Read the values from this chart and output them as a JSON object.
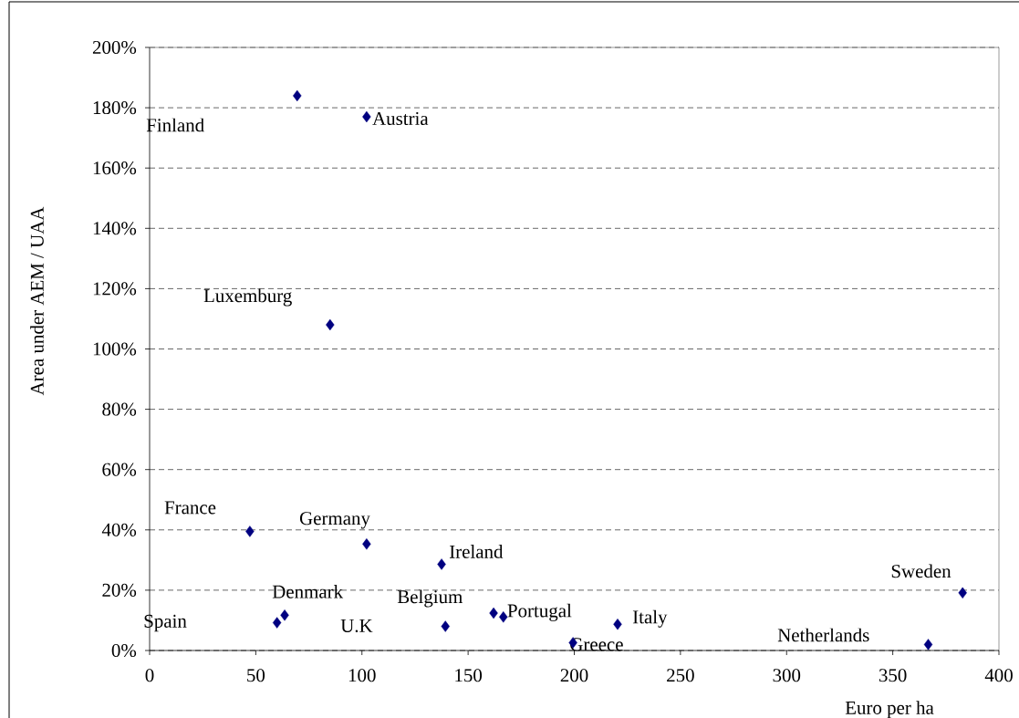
{
  "chart_data": {
    "type": "scatter",
    "xlabel": "Euro per ha",
    "ylabel": "Area under AEM / UAA",
    "x": [
      69.5,
      102.2,
      85.0,
      47.2,
      102.2,
      137.5,
      60.0,
      63.6,
      139.3,
      162.0,
      166.6,
      199.4,
      220.4,
      366.7,
      382.9
    ],
    "values": [
      184,
      177,
      108,
      39.5,
      35.3,
      28.6,
      9.2,
      11.7,
      8.0,
      12.4,
      11.1,
      2.6,
      8.7,
      2.0,
      19.1
    ],
    "color": "#000080",
    "marker": "diamond",
    "xlim": [
      0,
      400
    ],
    "xticks": [
      0,
      50,
      100,
      150,
      200,
      250,
      300,
      350,
      400
    ],
    "ylim": [
      0,
      200
    ],
    "yticks": [
      {
        "value": 0,
        "label": "0%"
      },
      {
        "value": 20,
        "label": "20%"
      },
      {
        "value": 40,
        "label": "40%"
      },
      {
        "value": 60,
        "label": "60%"
      },
      {
        "value": 80,
        "label": "80%"
      },
      {
        "value": 100,
        "label": "100%"
      },
      {
        "value": 120,
        "label": "120%"
      },
      {
        "value": 140,
        "label": "140%"
      },
      {
        "value": 160,
        "label": "160%"
      },
      {
        "value": 180,
        "label": "180%"
      },
      {
        "value": 200,
        "label": "200%"
      }
    ],
    "grid": "y",
    "annotations": [
      "Finland",
      {
        "text": "Austria",
        "x": 102.2,
        "y": 177
      },
      {
        "text": "Luxemburg",
        "x": 85.0,
        "y": 108
      },
      {
        "text": "France",
        "x": 47.2,
        "y": 39.5
      },
      {
        "text": "Germany",
        "x": 102.2,
        "y": 35.3
      },
      {
        "text": "Ireland",
        "x": 137.5,
        "y": 28.6
      },
      "Spain",
      {
        "text": "Denmark",
        "x": 63.6,
        "y": 11.7
      },
      "U.K",
      {
        "text": "Belgium",
        "x": 162.0,
        "y": 12.4
      },
      {
        "text": "Portugal",
        "x": 166.6,
        "y": 11.1
      },
      {
        "text": "Greece",
        "x": 199.4,
        "y": 2.6
      },
      {
        "text": "Italy",
        "x": 220.4,
        "y": 8.7
      },
      "Netherlands",
      {
        "text": "Sweden",
        "x": 382.9,
        "y": 19.1
      }
    ]
  }
}
